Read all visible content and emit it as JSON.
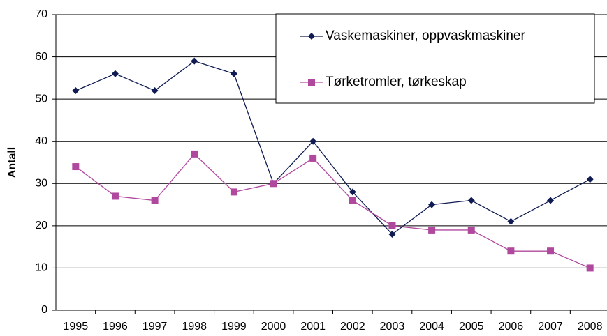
{
  "chart_data": {
    "type": "line",
    "y_label": "Antall",
    "categories": [
      "1995",
      "1996",
      "1997",
      "1998",
      "1999",
      "2000",
      "2001",
      "2002",
      "2003",
      "2004",
      "2005",
      "2006",
      "2007",
      "2008"
    ],
    "series": [
      {
        "name": "Vaskemaskiner, oppvaskmaskiner",
        "color": "#0f1b52",
        "marker": "diamond",
        "values": [
          52,
          56,
          52,
          59,
          56,
          30,
          40,
          28,
          18,
          25,
          26,
          21,
          26,
          31
        ]
      },
      {
        "name": "Tørketromler, tørkeskap",
        "color": "#b0499d",
        "marker": "square",
        "values": [
          34,
          27,
          26,
          37,
          28,
          30,
          36,
          26,
          20,
          19,
          19,
          14,
          14,
          10
        ]
      }
    ],
    "ylim": [
      0,
      70
    ],
    "yticks": [
      0,
      10,
      20,
      30,
      40,
      50,
      60,
      70
    ],
    "grid": true,
    "legend": "top-right"
  }
}
